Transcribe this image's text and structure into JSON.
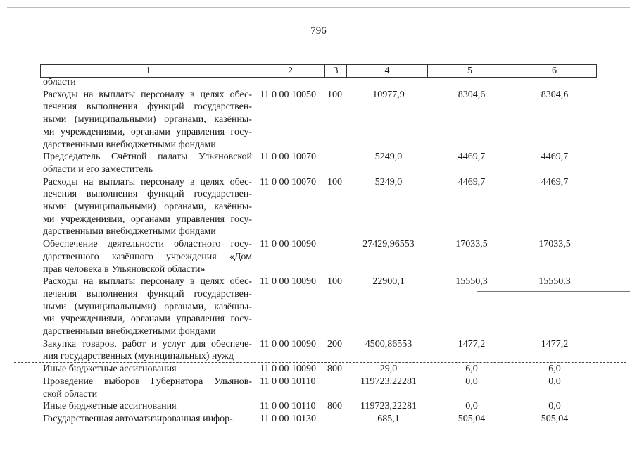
{
  "page_number": "796",
  "header": [
    "1",
    "2",
    "3",
    "4",
    "5",
    "6"
  ],
  "rows": [
    {
      "desc": [
        "области"
      ],
      "code": "",
      "type": "",
      "v4": "",
      "v5": "",
      "v6": ""
    },
    {
      "desc": [
        "Расходы на выплаты персоналу в целях обес-",
        "печения выполнения функций государствен-",
        "ными (муниципальными) органами, казённы-",
        "ми учреждениями, органами управления госу-",
        "дарственными внебюджетными фондами"
      ],
      "code": "11 0 00 10050",
      "type": "100",
      "v4": "10977,9",
      "v5": "8304,6",
      "v6": "8304,6"
    },
    {
      "desc": [
        "Председатель Счётной палаты Ульяновской",
        "области и его заместитель"
      ],
      "code": "11 0 00 10070",
      "type": "",
      "v4": "5249,0",
      "v5": "4469,7",
      "v6": "4469,7"
    },
    {
      "desc": [
        "Расходы на выплаты персоналу в целях обес-",
        "печения выполнения функций государствен-",
        "ными (муниципальными) органами, казённы-",
        "ми учреждениями, органами управления госу-",
        "дарственными внебюджетными фондами"
      ],
      "code": "11 0 00 10070",
      "type": "100",
      "v4": "5249,0",
      "v5": "4469,7",
      "v6": "4469,7"
    },
    {
      "desc": [
        "Обеспечение деятельности областного госу-",
        "дарственного казённого учреждения «Дом",
        "прав человека в Ульяновской области»"
      ],
      "code": "11 0 00 10090",
      "type": "",
      "v4": "27429,96553",
      "v5": "17033,5",
      "v6": "17033,5"
    },
    {
      "desc": [
        "Расходы на выплаты персоналу в целях обес-",
        "печения выполнения функций государствен-",
        "ными (муниципальными) органами, казённы-",
        "ми учреждениями, органами управления госу-",
        "дарственными внебюджетными фондами"
      ],
      "code": "11 0 00 10090",
      "type": "100",
      "v4": "22900,1",
      "v5": "15550,3",
      "v6": "15550,3"
    },
    {
      "desc": [
        "Закупка товаров, работ и услуг для обеспече-",
        "ния государственных (муниципальных) нужд"
      ],
      "code": "11 0 00 10090",
      "type": "200",
      "v4": "4500,86553",
      "v5": "1477,2",
      "v6": "1477,2"
    },
    {
      "desc": [
        "Иные бюджетные ассигнования"
      ],
      "code": "11 0 00 10090",
      "type": "800",
      "v4": "29,0",
      "v5": "6,0",
      "v6": "6,0"
    },
    {
      "desc": [
        "Проведение выборов Губернатора Ульянов-",
        "ской области"
      ],
      "code": "11 0 00 10110",
      "type": "",
      "v4": "119723,22281",
      "v5": "0,0",
      "v6": "0,0"
    },
    {
      "desc": [
        "Иные бюджетные ассигнования"
      ],
      "code": "11 0 00 10110",
      "type": "800",
      "v4": "119723,22281",
      "v5": "0,0",
      "v6": "0,0"
    },
    {
      "desc": [
        "Государственная автоматизированная инфор-"
      ],
      "code": "11 0 00 10130",
      "type": "",
      "v4": "685,1",
      "v5": "505,04",
      "v6": "505,04"
    }
  ]
}
